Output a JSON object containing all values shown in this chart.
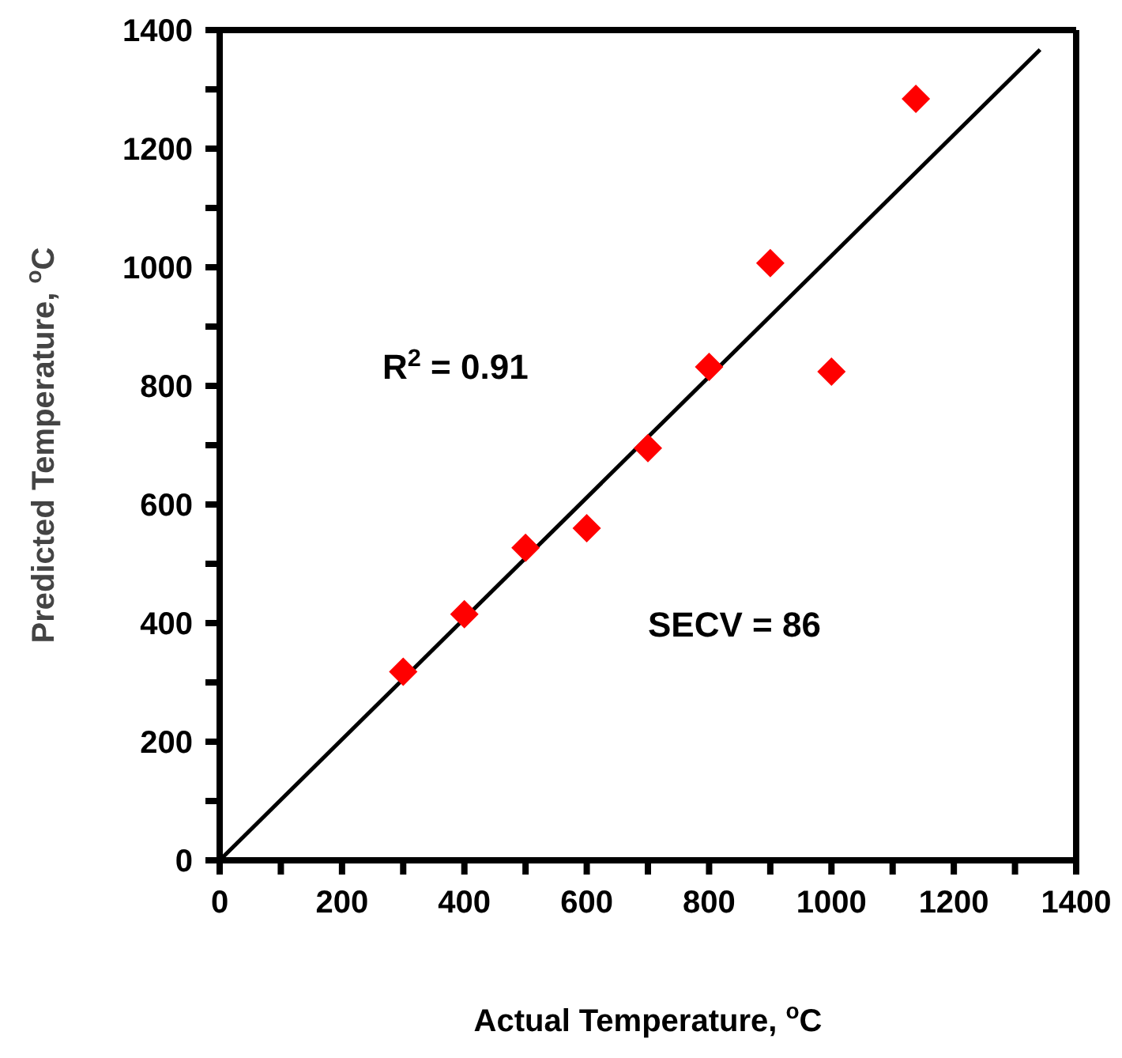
{
  "chart_data": {
    "type": "scatter",
    "xlabel": "Actual Temperature, $^{o}$C",
    "ylabel": "Predicted Temperature, $^{o}$C",
    "annotations": [
      "R$^{2}$ = 0.91",
      "SECV = 86"
    ],
    "marker": "diamond",
    "grid": false,
    "legend": false,
    "xlim": [
      0,
      1400
    ],
    "ylim": [
      0,
      1400
    ],
    "xticks": [
      0,
      {
        "value": 100,
        "label": null
      },
      200,
      {
        "value": 300,
        "label": null
      },
      400,
      {
        "value": 500,
        "label": null
      },
      600,
      {
        "value": 700,
        "label": null
      },
      800,
      {
        "value": 900,
        "label": null
      },
      1000,
      {
        "value": 1100,
        "label": null
      },
      1200,
      {
        "value": 1300,
        "label": null
      },
      1400
    ],
    "yticks": [
      0,
      {
        "value": 100,
        "label": null
      },
      200,
      {
        "value": 300,
        "label": null
      },
      400,
      {
        "value": 500,
        "label": null
      },
      600,
      {
        "value": 700,
        "label": null
      },
      800,
      {
        "value": 900,
        "label": null
      },
      1000,
      {
        "value": 1100,
        "label": null
      },
      1200,
      {
        "value": 1300,
        "label": null
      },
      1400
    ],
    "series": [
      {
        "color": "#ff0000",
        "x": [
          300,
          400,
          500,
          600,
          700,
          800,
          900,
          1000,
          1138
        ],
        "values": [
          318,
          415,
          527,
          560,
          695,
          832,
          1007,
          824,
          1284
        ]
      },
      {
        "type": "line",
        "color": "#000000",
        "marker": "none",
        "x": [
          0,
          1341
        ],
        "values": [
          0,
          1367
        ]
      }
    ]
  }
}
